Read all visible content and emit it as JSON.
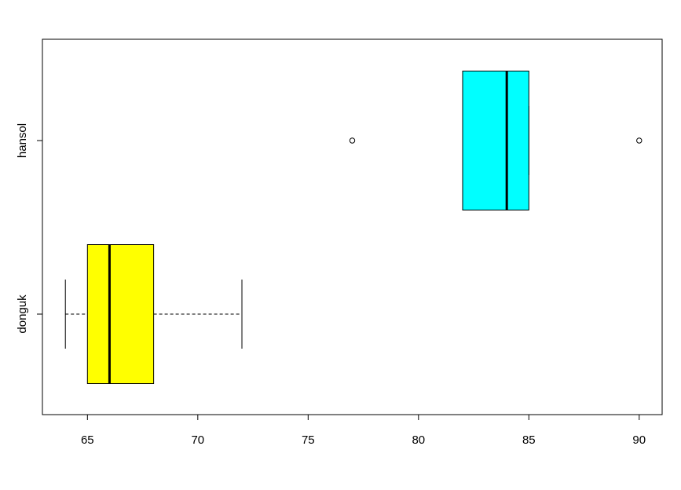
{
  "chart_data": {
    "type": "boxplot",
    "orientation": "horizontal",
    "categories": [
      "donguk",
      "hansol"
    ],
    "boxes": [
      {
        "color": "#ffff00",
        "whisker_low": 64,
        "q1": 65,
        "median": 66,
        "q3": 68,
        "whisker_high": 72,
        "outliers": []
      },
      {
        "color": "#00ffff",
        "whisker_low": 82,
        "q1": 82,
        "median": 84,
        "q3": 85,
        "whisker_high": 85,
        "outliers": [
          77,
          90
        ]
      }
    ],
    "xlim": [
      62.96,
      91.04
    ],
    "xticks": [
      65,
      70,
      75,
      80,
      85,
      90
    ]
  }
}
